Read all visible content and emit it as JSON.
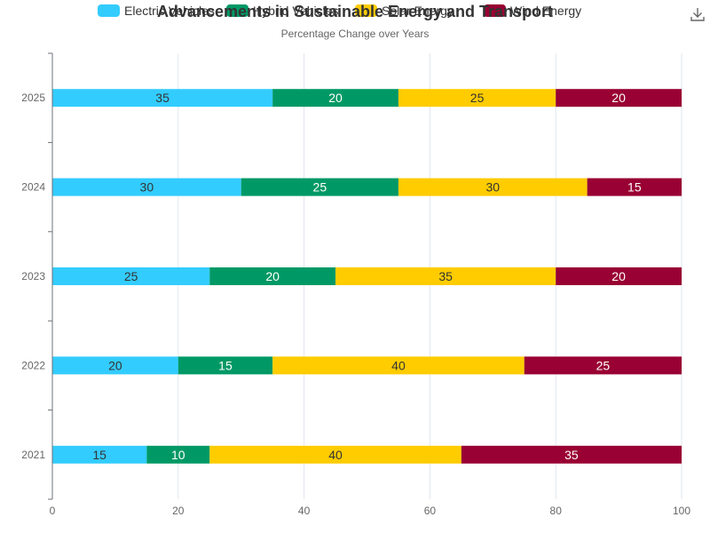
{
  "chart_data": {
    "type": "bar",
    "orientation": "horizontal",
    "stacked": true,
    "title": "Advancements in Sustainable Energy and Transport",
    "subtitle": "Percentage Change over Years",
    "categories": [
      "2021",
      "2022",
      "2023",
      "2024",
      "2025"
    ],
    "series": [
      {
        "name": "Electric Vehicles",
        "color": "#33ccff",
        "values": [
          15,
          20,
          25,
          30,
          35
        ]
      },
      {
        "name": "Hybrid Vehicles",
        "color": "#009966",
        "values": [
          10,
          15,
          20,
          25,
          20
        ]
      },
      {
        "name": "Solar Energy",
        "color": "#ffcc00",
        "values": [
          40,
          40,
          35,
          30,
          25
        ]
      },
      {
        "name": "Wind Energy",
        "color": "#990033",
        "values": [
          35,
          25,
          20,
          15,
          20
        ]
      }
    ],
    "xlim": [
      0,
      100
    ],
    "xticks": [
      0,
      20,
      40,
      60,
      80,
      100
    ],
    "grid": true,
    "legend_position": "top"
  },
  "toolbox": {
    "icon": "download-icon"
  }
}
